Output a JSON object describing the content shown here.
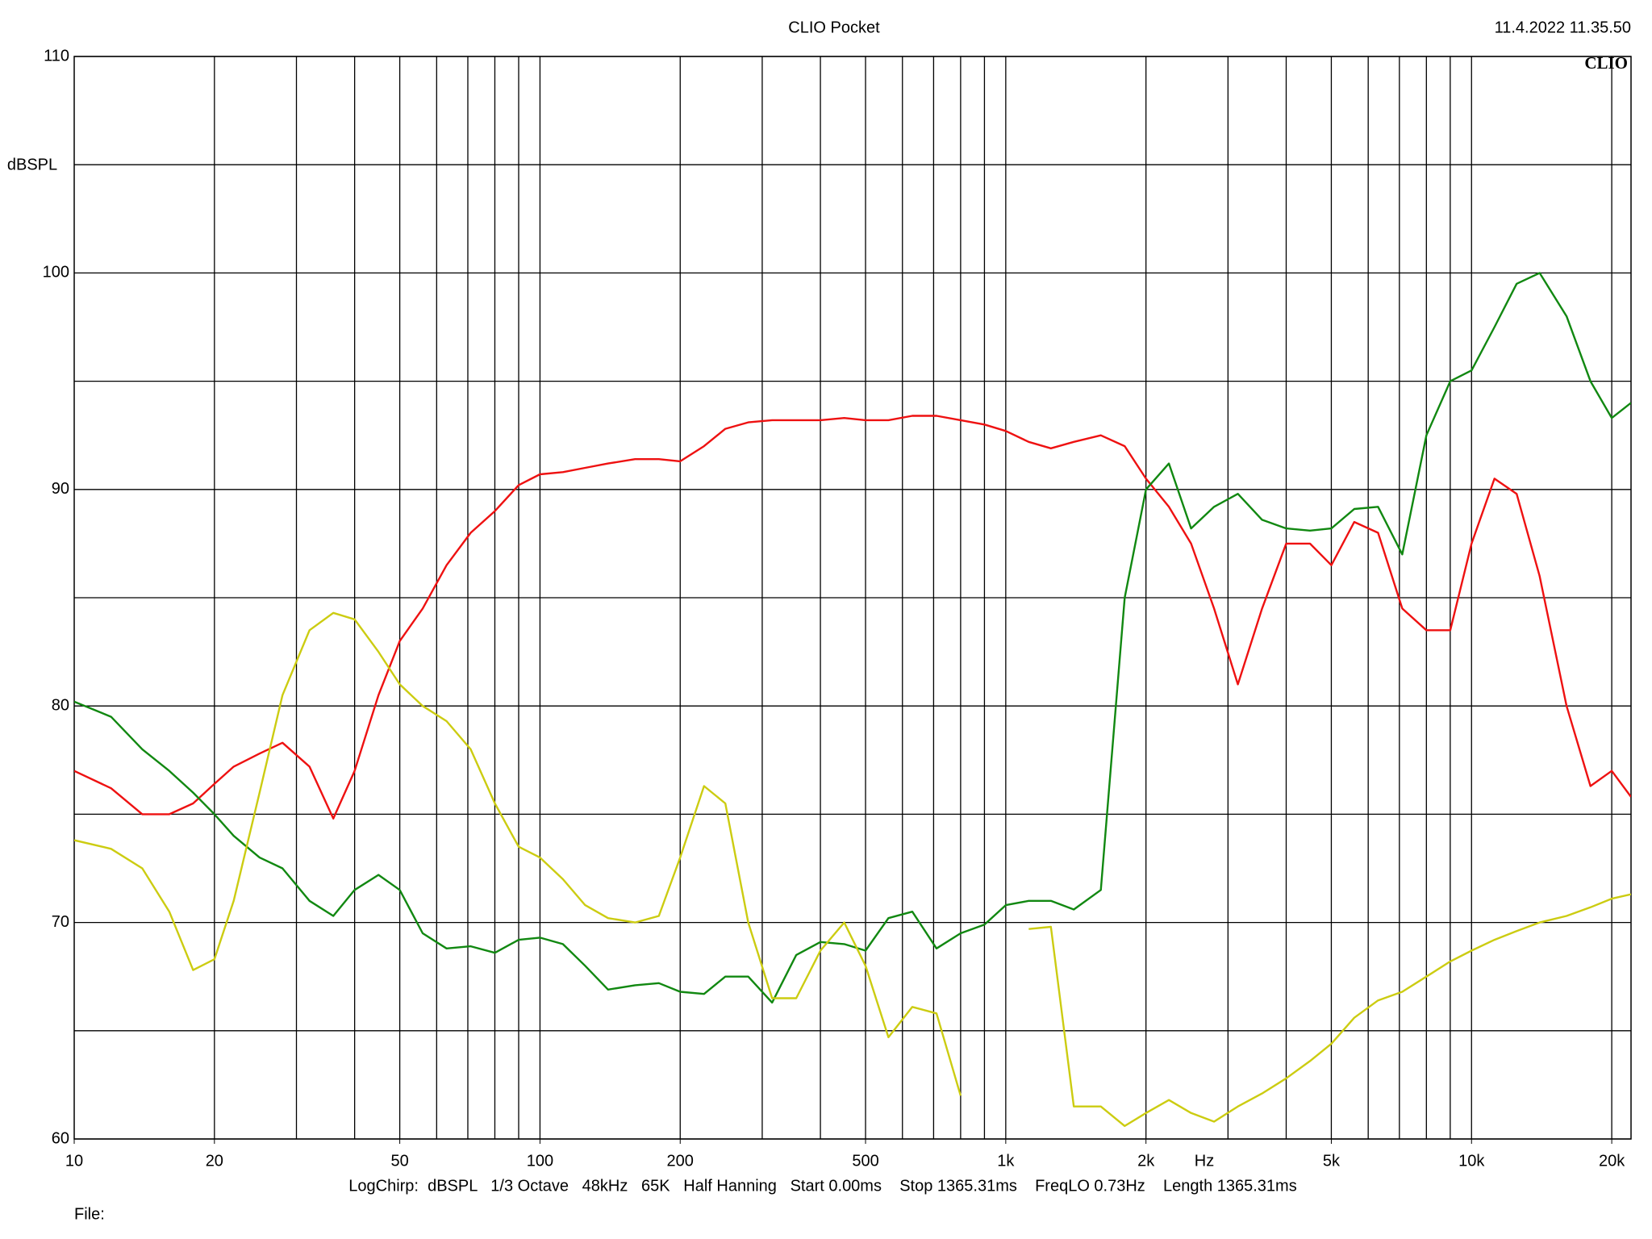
{
  "chart_data": {
    "type": "line",
    "title": "CLIO Pocket",
    "timestamp": "11.4.2022 11.35.50",
    "logo": "CLIO",
    "y_label": "dBSPL",
    "x_label": "Hz",
    "footer": "LogChirp:  dBSPL   1/3 Octave   48kHz   65K   Half Hanning   Start 0.00ms    Stop 1365.31ms    FreqLO 0.73Hz    Length 1365.31ms",
    "file_label": "File:",
    "x_log": true,
    "grid": true,
    "xlim": [
      10,
      22000
    ],
    "ylim": [
      60,
      110
    ],
    "xticks": [
      10,
      20,
      50,
      100,
      200,
      500,
      {
        "value": 1000,
        "label": "1k"
      },
      {
        "value": 2000,
        "label": "2k"
      },
      {
        "value": 5000,
        "label": "5k"
      },
      {
        "value": 10000,
        "label": "10k"
      },
      {
        "value": 20000,
        "label": "20k"
      }
    ],
    "yticks": [
      60,
      70,
      80,
      90,
      100,
      110
    ],
    "x_grid": [
      20,
      30,
      40,
      50,
      60,
      70,
      80,
      90,
      100,
      200,
      300,
      400,
      500,
      600,
      700,
      800,
      900,
      1000,
      2000,
      3000,
      4000,
      5000,
      6000,
      7000,
      8000,
      9000,
      10000,
      20000
    ],
    "y_grid": [
      65,
      75,
      85,
      95,
      105
    ],
    "x": [
      10,
      12,
      14,
      16,
      18,
      20,
      22,
      25,
      28,
      32,
      36,
      40,
      45,
      50,
      56,
      63,
      71,
      80,
      90,
      100,
      112,
      125,
      140,
      160,
      180,
      200,
      225,
      250,
      280,
      315,
      355,
      400,
      450,
      500,
      560,
      630,
      710,
      800,
      900,
      1000,
      1120,
      1250,
      1400,
      1600,
      1800,
      2000,
      2240,
      2500,
      2800,
      3150,
      3550,
      4000,
      4500,
      5000,
      5600,
      6300,
      7100,
      8000,
      9000,
      10000,
      11200,
      12500,
      14000,
      16000,
      18000,
      20000,
      22000
    ],
    "series": [
      {
        "color": "#ee1111",
        "values": [
          77,
          76.2,
          75,
          75,
          75.5,
          76.4,
          77.2,
          77.8,
          78.3,
          77.2,
          74.8,
          77,
          80.5,
          83,
          84.5,
          86.5,
          88,
          89,
          90.2,
          90.7,
          90.8,
          91,
          91.2,
          91.4,
          91.4,
          91.3,
          92,
          92.8,
          93.1,
          93.2,
          93.2,
          93.2,
          93.3,
          93.2,
          93.2,
          93.4,
          93.4,
          93.2,
          93,
          92.7,
          92.2,
          91.9,
          92.2,
          92.5,
          92,
          90.5,
          89.2,
          87.5,
          84.5,
          81,
          84.5,
          87.5,
          87.5,
          86.5,
          88.5,
          88,
          84.5,
          83.5,
          83.5,
          87.5,
          90.5,
          89.8,
          86,
          80,
          76.3,
          77,
          75.8
        ]
      },
      {
        "color": "#118811",
        "values": [
          80.2,
          79.5,
          78,
          77,
          76,
          75,
          74,
          73,
          72.5,
          71,
          70.3,
          71.5,
          72.2,
          71.5,
          69.5,
          68.8,
          68.9,
          68.6,
          69.2,
          69.3,
          69,
          68,
          66.9,
          67.1,
          67.2,
          66.8,
          66.7,
          67.5,
          67.5,
          66.3,
          68.5,
          69.1,
          69,
          68.7,
          70.2,
          70.5,
          68.8,
          69.5,
          69.9,
          70.8,
          71,
          71,
          70.6,
          71.5,
          85,
          90,
          91.2,
          88.2,
          89.2,
          89.8,
          88.6,
          88.2,
          88.1,
          88.2,
          89.1,
          89.2,
          87,
          92.5,
          95,
          95.5,
          97.5,
          99.5,
          100,
          98,
          95,
          93.3,
          94
        ]
      },
      {
        "color": "#cccc11",
        "values": [
          73.8,
          73.4,
          72.5,
          70.5,
          67.8,
          68.3,
          71,
          76,
          80.5,
          83.5,
          84.3,
          84,
          82.5,
          81,
          80,
          79.3,
          78,
          75.5,
          73.5,
          73,
          72,
          70.8,
          70.2,
          70,
          70.3,
          73,
          76.3,
          75.5,
          70,
          66.5,
          66.5,
          68.7,
          70,
          68,
          64.7,
          66.1,
          65.8,
          62,
          null,
          null,
          69.7,
          69.8,
          61.5,
          61.5,
          60.6,
          61.2,
          61.8,
          61.2,
          60.8,
          61.5,
          62.1,
          62.8,
          63.6,
          64.4,
          65.6,
          66.4,
          66.8,
          67.5,
          68.2,
          68.7,
          69.2,
          69.6,
          70,
          70.3,
          70.7,
          71.1,
          71.3
        ]
      }
    ]
  }
}
